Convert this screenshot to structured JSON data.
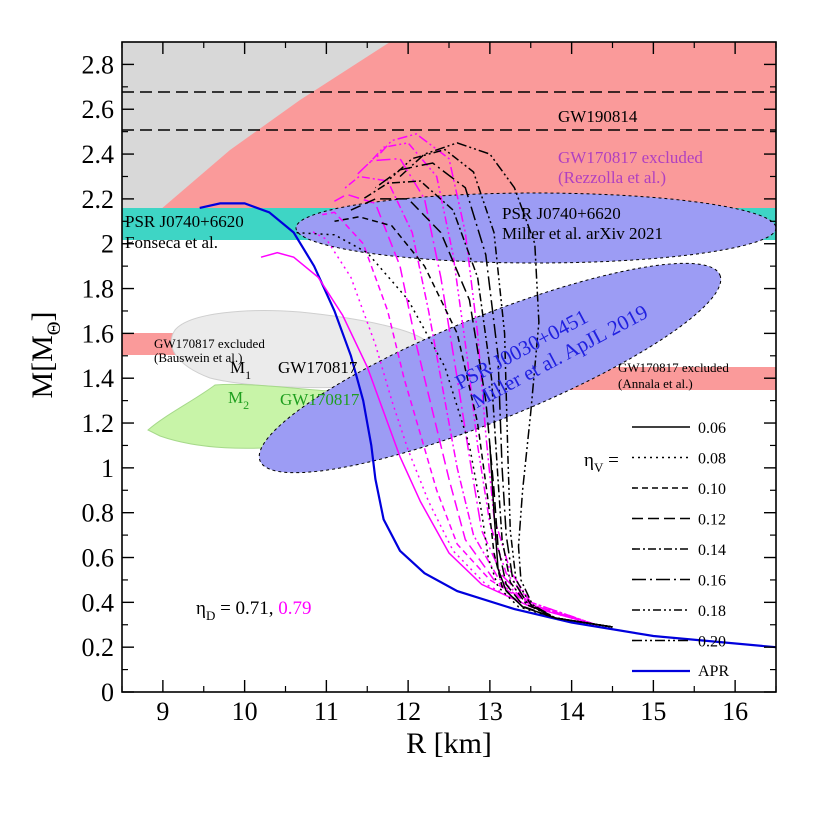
{
  "chart_data": {
    "type": "line",
    "xlabel": "R [km]",
    "ylabel": "M[M",
    "ylabel_sub": "Θ",
    "ylabel_close": "]",
    "xlim": [
      8.5,
      16.5
    ],
    "ylim": [
      0,
      2.9
    ],
    "xticks": [
      9,
      10,
      11,
      12,
      13,
      14,
      15,
      16
    ],
    "yticks": [
      0,
      0.2,
      0.4,
      0.6,
      0.8,
      1,
      1.2,
      1.4,
      1.6,
      1.8,
      2,
      2.2,
      2.4,
      2.6,
      2.8
    ],
    "xtick_labels": [
      "9",
      "10",
      "11",
      "12",
      "13",
      "14",
      "15",
      "16"
    ],
    "ytick_labels": [
      "0",
      "0.2",
      "0.4",
      "0.6",
      "0.8",
      "1",
      "1.2",
      "1.4",
      "1.6",
      "1.8",
      "2",
      "2.2",
      "2.4",
      "2.6",
      "2.8"
    ],
    "grid": false,
    "colors": {
      "black": "#000000",
      "magenta": "#ff00ff",
      "blue": "#0000dd",
      "salmon": "#fa9a9a",
      "grey": "#d8d8d8",
      "teal": "#3ed5c5",
      "lavender": "#9c9cf4",
      "lightgreen": "#c8f4a8",
      "lightgrey": "#ebebeb",
      "purple": "#b040c0",
      "green": "#1f9f1f"
    },
    "regions": {
      "gw190814_lines": [
        2.5,
        2.67
      ],
      "gw170817_rezzolla_excluded_above": 2.16,
      "psr_j0740_fonseca": [
        2.02,
        2.16
      ],
      "bauswein_excluded": {
        "x": [
          8.5,
          10.85
        ],
        "y": [
          1.5,
          1.6
        ]
      },
      "annala_excluded": {
        "x": [
          13.5,
          16.5
        ],
        "y": [
          1.35,
          1.45
        ]
      }
    },
    "series_style_key": {
      "eta_v_values": [
        "0.06",
        "0.08",
        "0.10",
        "0.12",
        "0.14",
        "0.16",
        "0.18",
        "0.20"
      ],
      "eta_d_values": [
        "0.71",
        "0.79"
      ]
    },
    "series": [
      {
        "name": "APR",
        "color": "#0000dd",
        "dash": "",
        "x": [
          16.5,
          15,
          14,
          13.3,
          12.6,
          12.2,
          11.9,
          11.7,
          11.6,
          11.55,
          11.45,
          11.3,
          11.1,
          10.85,
          10.6,
          10.3,
          10.0,
          9.7,
          9.45
        ],
        "y": [
          0.2,
          0.25,
          0.31,
          0.37,
          0.45,
          0.53,
          0.63,
          0.77,
          0.95,
          1.1,
          1.3,
          1.5,
          1.7,
          1.9,
          2.05,
          2.14,
          2.18,
          2.18,
          2.16
        ]
      },
      {
        "name": "η_V=0.06, η_D=0.79",
        "color": "#ff00ff",
        "dash": "",
        "x": [
          14.3,
          13.5,
          12.9,
          12.5,
          12.15,
          11.9,
          11.7,
          11.5,
          11.2,
          10.9,
          10.6,
          10.4,
          10.2
        ],
        "y": [
          0.3,
          0.38,
          0.48,
          0.62,
          0.85,
          1.05,
          1.25,
          1.45,
          1.68,
          1.85,
          1.94,
          1.96,
          1.94
        ]
      },
      {
        "name": "η_V=0.08, η_D=0.79",
        "color": "#ff00ff",
        "dash": "2,4",
        "x": [
          14.3,
          13.5,
          12.95,
          12.55,
          12.25,
          12.0,
          11.8,
          11.6,
          11.3,
          11.0,
          10.8
        ],
        "y": [
          0.3,
          0.38,
          0.48,
          0.63,
          0.85,
          1.08,
          1.3,
          1.55,
          1.85,
          2.02,
          2.06
        ]
      },
      {
        "name": "η_V=0.10, η_D=0.79",
        "color": "#ff00ff",
        "dash": "6,4",
        "x": [
          14.3,
          13.5,
          13.0,
          12.6,
          12.35,
          12.15,
          11.95,
          11.75,
          11.45,
          11.1,
          10.95
        ],
        "y": [
          0.3,
          0.39,
          0.5,
          0.66,
          0.9,
          1.15,
          1.4,
          1.7,
          2.0,
          2.14,
          2.13
        ]
      },
      {
        "name": "η_V=0.12, η_D=0.79",
        "color": "#ff00ff",
        "dash": "11,5",
        "x": [
          14.3,
          13.5,
          13.05,
          12.7,
          12.5,
          12.3,
          12.1,
          11.9,
          11.6,
          11.25,
          11.05
        ],
        "y": [
          0.3,
          0.39,
          0.5,
          0.68,
          0.95,
          1.25,
          1.55,
          1.9,
          2.18,
          2.22,
          2.18
        ]
      },
      {
        "name": "η_V=0.14, η_D=0.79",
        "color": "#ff00ff",
        "dash": "8,3,2,3",
        "x": [
          14.3,
          13.5,
          13.1,
          12.8,
          12.6,
          12.45,
          12.25,
          12.05,
          11.75,
          11.4,
          11.2
        ],
        "y": [
          0.3,
          0.39,
          0.51,
          0.7,
          1.0,
          1.3,
          1.7,
          2.05,
          2.28,
          2.3,
          2.24
        ]
      },
      {
        "name": "η_V=0.16, η_D=0.79",
        "color": "#ff00ff",
        "dash": "14,4,2,4",
        "x": [
          14.3,
          13.5,
          13.15,
          12.9,
          12.75,
          12.6,
          12.4,
          12.2,
          11.9,
          11.55,
          11.35
        ],
        "y": [
          0.3,
          0.39,
          0.52,
          0.72,
          1.05,
          1.4,
          1.85,
          2.2,
          2.38,
          2.37,
          2.3
        ]
      },
      {
        "name": "η_V=0.18, η_D=0.79",
        "color": "#ff00ff",
        "dash": "8,3,2,3,2,3",
        "x": [
          14.3,
          13.5,
          13.2,
          13.0,
          12.85,
          12.72,
          12.55,
          12.35,
          12.0,
          11.7,
          11.5
        ],
        "y": [
          0.3,
          0.4,
          0.53,
          0.75,
          1.1,
          1.5,
          1.95,
          2.3,
          2.45,
          2.43,
          2.35
        ]
      },
      {
        "name": "η_V=0.20, η_D=0.79",
        "color": "#ff00ff",
        "dash": "10,3,2,3,2,3",
        "x": [
          14.3,
          13.5,
          13.25,
          13.05,
          12.95,
          12.85,
          12.7,
          12.5,
          12.1,
          11.8,
          11.6
        ],
        "y": [
          0.3,
          0.4,
          0.54,
          0.78,
          1.15,
          1.6,
          2.05,
          2.38,
          2.49,
          2.46,
          2.38
        ]
      },
      {
        "name": "η_V=0.06, η_D=0.71",
        "color": "#000000",
        "dash": "",
        "x": [
          14.5,
          13.8,
          13.4,
          13.2,
          13.1,
          13.05,
          13.0
        ],
        "y": [
          0.29,
          0.33,
          0.38,
          0.45,
          0.55,
          0.8,
          1.1
        ]
      },
      {
        "name": "η_V=0.08, η_D=0.71",
        "color": "#000000",
        "dash": "2,4",
        "x": [
          14.5,
          13.8,
          13.35,
          13.1,
          12.98,
          12.9,
          12.75,
          12.45,
          12.0,
          11.5,
          11.1,
          10.6
        ],
        "y": [
          0.29,
          0.33,
          0.38,
          0.47,
          0.6,
          0.8,
          1.1,
          1.45,
          1.75,
          1.96,
          2.04,
          2.05
        ]
      },
      {
        "name": "η_V=0.10, η_D=0.71",
        "color": "#000000",
        "dash": "6,4",
        "x": [
          14.5,
          13.8,
          13.4,
          13.15,
          13.05,
          12.98,
          12.85,
          12.6,
          12.2,
          11.8,
          11.4,
          11.1
        ],
        "y": [
          0.29,
          0.33,
          0.38,
          0.47,
          0.62,
          0.85,
          1.2,
          1.6,
          1.9,
          2.08,
          2.12,
          2.1
        ]
      },
      {
        "name": "η_V=0.12, η_D=0.71",
        "color": "#000000",
        "dash": "11,5",
        "x": [
          14.5,
          13.8,
          13.42,
          13.2,
          13.1,
          13.05,
          12.95,
          12.75,
          12.4,
          12.0,
          11.6,
          11.3
        ],
        "y": [
          0.29,
          0.33,
          0.38,
          0.48,
          0.65,
          0.9,
          1.3,
          1.75,
          2.05,
          2.2,
          2.2,
          2.15
        ]
      },
      {
        "name": "η_V=0.14, η_D=0.71",
        "color": "#000000",
        "dash": "8,3,2,3",
        "x": [
          14.5,
          13.8,
          13.45,
          13.25,
          13.15,
          13.1,
          13.02,
          12.85,
          12.55,
          12.15,
          11.75,
          11.45
        ],
        "y": [
          0.29,
          0.33,
          0.39,
          0.49,
          0.68,
          0.95,
          1.4,
          1.85,
          2.15,
          2.28,
          2.27,
          2.2
        ]
      },
      {
        "name": "η_V=0.16, η_D=0.71",
        "color": "#000000",
        "dash": "14,4,2,4",
        "x": [
          14.5,
          13.8,
          13.47,
          13.28,
          13.2,
          13.15,
          13.1,
          12.95,
          12.7,
          12.3,
          11.9,
          11.6
        ],
        "y": [
          0.29,
          0.33,
          0.39,
          0.5,
          0.7,
          1.0,
          1.5,
          1.95,
          2.25,
          2.36,
          2.33,
          2.25
        ]
      },
      {
        "name": "η_V=0.18, η_D=0.71",
        "color": "#000000",
        "dash": "8,3,2,3,2,3",
        "x": [
          14.5,
          13.8,
          13.5,
          13.32,
          13.25,
          13.22,
          13.18,
          13.05,
          12.8,
          12.45,
          12.05,
          11.75
        ],
        "y": [
          0.29,
          0.33,
          0.39,
          0.5,
          0.72,
          1.05,
          1.6,
          2.05,
          2.32,
          2.42,
          2.38,
          2.28
        ]
      },
      {
        "name": "η_V=0.20, η_D=0.71",
        "color": "#000000",
        "dash": "10,3,2,3,2,3",
        "x": [
          14.5,
          13.8,
          13.52,
          13.38,
          13.35,
          13.4,
          13.5,
          13.6,
          13.55,
          13.3,
          13.0,
          12.6,
          12.2,
          11.9
        ],
        "y": [
          0.29,
          0.33,
          0.39,
          0.5,
          0.65,
          0.9,
          1.25,
          1.65,
          2.0,
          2.25,
          2.4,
          2.45,
          2.4,
          2.3
        ]
      }
    ]
  },
  "annotations": {
    "gw190814": "GW190814",
    "rezzolla_1": "GW170817 excluded",
    "rezzolla_2": "(Rezzolla et al.)",
    "fonseca_1": "PSR J0740+6620",
    "fonseca_2": "Fonseca et al.",
    "miller2021_1": "PSR J0740+6620",
    "miller2021_2": "Miller et al. arXiv 2021",
    "bauswein_1": "GW170817 excluded",
    "bauswein_2": "(Bauswein et al.)",
    "annala_1": "GW170817 excluded",
    "annala_2": "(Annala et al.)",
    "m1": "M",
    "m1_sub": "1",
    "m1_label": "GW170817",
    "m2": "M",
    "m2_sub": "2",
    "m2_label": "GW170817",
    "psr0030_1": "PSR J0030+0451",
    "psr0030_2": "Miller et al. ApJL 2019",
    "eta_v": "η",
    "eta_v_sub": "V",
    "eta_v_eq": " =",
    "eta_d": "η",
    "eta_d_sub": "D",
    "eta_d_val1": " = 0.71, ",
    "eta_d_val2": "0.79",
    "legend_apr": "APR"
  }
}
